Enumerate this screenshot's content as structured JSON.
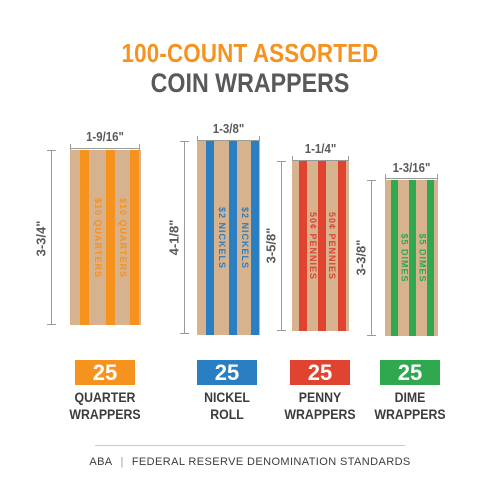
{
  "title_line1": "100-COUNT ASSORTED",
  "title_line2": "COIN WRAPPERS",
  "products": [
    {
      "width_dim": "1-9/16\"",
      "height_dim": "3-3/4\"",
      "count": "25",
      "label_line1": "QUARTER",
      "label_line2": "WRAPPERS",
      "color": "#f6921e",
      "stripe_text": "$10 QUARTERS"
    },
    {
      "width_dim": "1-3/8\"",
      "height_dim": "4-1/8\"",
      "count": "25",
      "label_line1": "NICKEL",
      "label_line2": "ROLL",
      "color": "#2a7fc2",
      "stripe_text": "$2 NICKELS"
    },
    {
      "width_dim": "1-1/4\"",
      "height_dim": "3-5/8\"",
      "count": "25",
      "label_line1": "PENNY",
      "label_line2": "WRAPPERS",
      "color": "#e0432f",
      "stripe_text": "50¢ PENNIES"
    },
    {
      "width_dim": "1-3/16\"",
      "height_dim": "3-3/8\"",
      "count": "25",
      "label_line1": "DIME",
      "label_line2": "WRAPPERS",
      "color": "#2fa84f",
      "stripe_text": "$5 DIMES"
    }
  ],
  "footer": {
    "left": "ABA",
    "right": "FEDERAL RESERVE DENOMINATION STANDARDS"
  }
}
